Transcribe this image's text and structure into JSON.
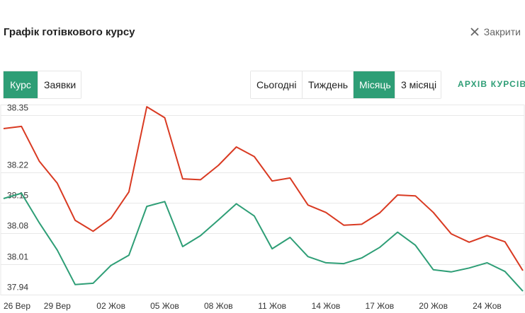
{
  "header": {
    "title": "Графік готівкового курсу",
    "close_label": "Закрити"
  },
  "mode_tabs": [
    {
      "label": "Курс",
      "active": true
    },
    {
      "label": "Заявки",
      "active": false
    }
  ],
  "period_tabs": [
    {
      "label": "Сьогодні",
      "active": false
    },
    {
      "label": "Тиждень",
      "active": false
    },
    {
      "label": "Місяць",
      "active": true
    },
    {
      "label": "3 місяці",
      "active": false
    }
  ],
  "archive_link": "АРХІВ КУРСІВ",
  "colors": {
    "accent": "#2e9e76",
    "sell_line": "#d93a22",
    "buy_line": "#2e9e76",
    "grid": "#e8e8e8"
  },
  "chart_data": {
    "type": "line",
    "title": "",
    "xlabel": "",
    "ylabel": "",
    "ylim": [
      37.94,
      38.375
    ],
    "y_ticks": [
      "38.35",
      "38.22",
      "38.15",
      "38.08",
      "38.01",
      "37.94"
    ],
    "y_tick_values": [
      38.35,
      38.22,
      38.15,
      38.08,
      38.01,
      37.94
    ],
    "x_tick_labels": [
      "26 Вер",
      "29 Вер",
      "02 Жов",
      "05 Жов",
      "08 Жов",
      "11 Жов",
      "14 Жов",
      "17 Жов",
      "20 Жов",
      "24 Жов"
    ],
    "grid": true,
    "series": [
      {
        "color": "#d93a22",
        "values": [
          38.32,
          38.325,
          38.245,
          38.195,
          38.11,
          38.085,
          38.115,
          38.175,
          38.37,
          38.345,
          38.205,
          38.203,
          38.236,
          38.278,
          38.256,
          38.2,
          38.207,
          38.145,
          38.128,
          38.099,
          38.101,
          38.127,
          38.168,
          38.166,
          38.128,
          38.079,
          38.06,
          38.075,
          38.061,
          37.995
        ]
      },
      {
        "color": "#2e9e76",
        "values": [
          38.16,
          38.172,
          38.104,
          38.042,
          37.963,
          37.966,
          38.007,
          38.03,
          38.142,
          38.153,
          38.05,
          38.075,
          38.111,
          38.148,
          38.12,
          38.045,
          38.071,
          38.027,
          38.013,
          38.011,
          38.024,
          38.048,
          38.083,
          38.053,
          37.997,
          37.992,
          38.001,
          38.013,
          37.993,
          37.948
        ]
      }
    ]
  }
}
